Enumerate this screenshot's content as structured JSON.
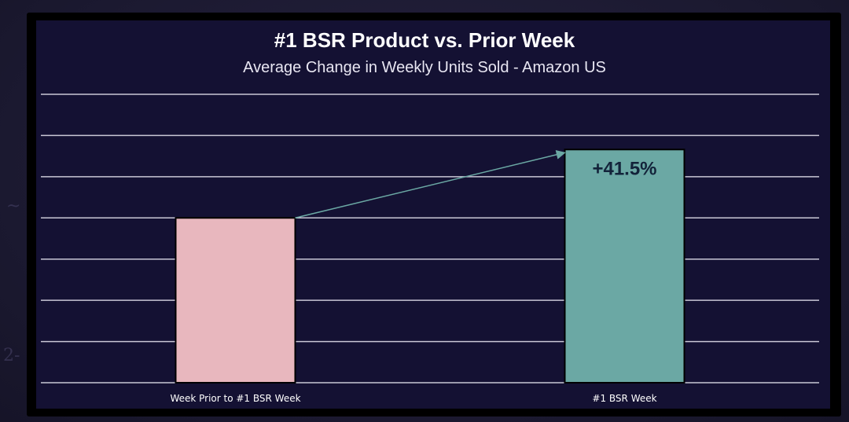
{
  "chart_data": {
    "type": "bar",
    "title": "#1 BSR Product vs. Prior Week",
    "subtitle": "Average Change in Weekly Units Sold - Amazon US",
    "categories": [
      "Week Prior to #1 BSR Week",
      "#1 BSR Week"
    ],
    "values": [
      100,
      141.5
    ],
    "ylim": [
      0,
      175
    ],
    "grid_step": 25,
    "grid": true,
    "xlabel": "",
    "ylabel": "",
    "annotation": {
      "text": "+41.5%",
      "from_category": 0,
      "to_category": 1
    },
    "colors": [
      "#e8b7be",
      "#6ba8a4"
    ],
    "gridline_color": "#c9c7d6",
    "arrow_color": "#6ba8a4"
  }
}
